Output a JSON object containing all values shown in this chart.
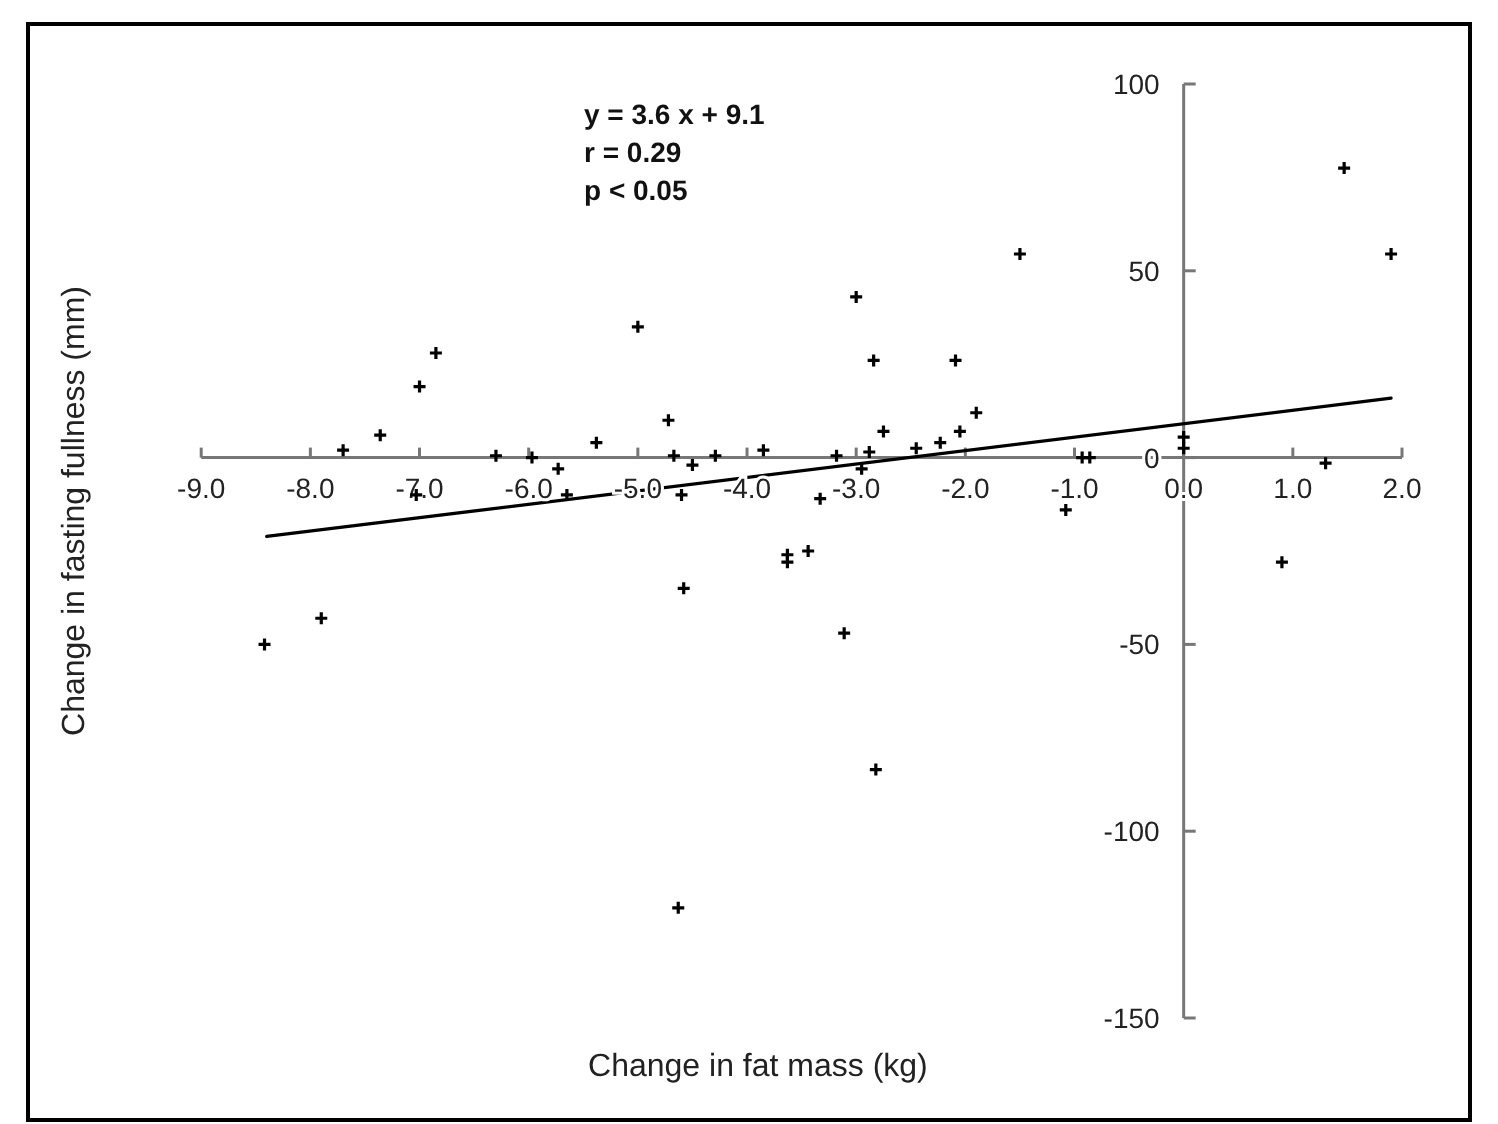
{
  "chart_data": {
    "type": "scatter",
    "xlabel": "Change in fat mass (kg)",
    "ylabel": "Change in fasting fullness (mm)",
    "annotations": [
      "y = 3.6 x + 9.1",
      "r = 0.29",
      "p < 0.05"
    ],
    "xlim": [
      -9,
      2
    ],
    "ylim": [
      -150,
      100
    ],
    "xticks": [
      {
        "value": -9,
        "label": "-9.0"
      },
      {
        "value": -8,
        "label": "-8.0"
      },
      {
        "value": -7,
        "label": "-7.0"
      },
      {
        "value": -6,
        "label": "-6.0"
      },
      {
        "value": -5,
        "label": "-5.0"
      },
      {
        "value": -4,
        "label": "-4.0"
      },
      {
        "value": -3,
        "label": "-3.0"
      },
      {
        "value": -2,
        "label": "-2.0"
      },
      {
        "value": -1,
        "label": "-1.0"
      },
      {
        "value": 0,
        "label": "0.0"
      },
      {
        "value": 1,
        "label": "1.0"
      },
      {
        "value": 2,
        "label": "2.0"
      }
    ],
    "yticks": [
      -150,
      -100,
      -50,
      0,
      50,
      100
    ],
    "grid": false,
    "series": [
      {
        "color": "#000000",
        "marker": "cross",
        "x": [
          -3.0,
          -5.0,
          -6.85,
          -7.0,
          -7.36,
          -7.7,
          -6.3,
          -5.97,
          -5.73,
          -5.38,
          -4.72,
          -4.67,
          -4.5,
          -4.29,
          -3.85,
          -4.6,
          -3.33,
          -3.18,
          -3.44,
          -3.63,
          -3.63,
          -4.58,
          -7.9,
          -8.42,
          -3.11,
          -7.03,
          -5.65,
          1.47,
          1.9,
          -1.5,
          -2.84,
          -2.09,
          -1.9,
          -2.75,
          -2.05,
          -2.23,
          -2.45,
          -2.88,
          -2.95,
          -0.93,
          -0.86,
          -1.08,
          0,
          0,
          1.3,
          0.9,
          -2.82,
          -4.63
        ],
        "values": [
          43,
          35,
          28,
          19,
          6,
          2,
          0.5,
          0,
          -3,
          4,
          10,
          0.5,
          -2,
          0.5,
          2,
          -10,
          -11,
          0.5,
          -25,
          -26,
          -28,
          -35,
          -43,
          -50,
          -47,
          -10,
          -10,
          77.5,
          54.5,
          54.5,
          26,
          26,
          12,
          7,
          7,
          4,
          2.5,
          1.5,
          -3,
          0,
          0,
          -14,
          2.5,
          5.5,
          -1.5,
          -28,
          -83.5,
          -120.5
        ]
      },
      {
        "type": "line",
        "color": "#000000",
        "marker": "none",
        "line_style": "solid",
        "x": [
          -8.4,
          1.9
        ],
        "values": [
          -21.1,
          15.9
        ]
      }
    ]
  }
}
